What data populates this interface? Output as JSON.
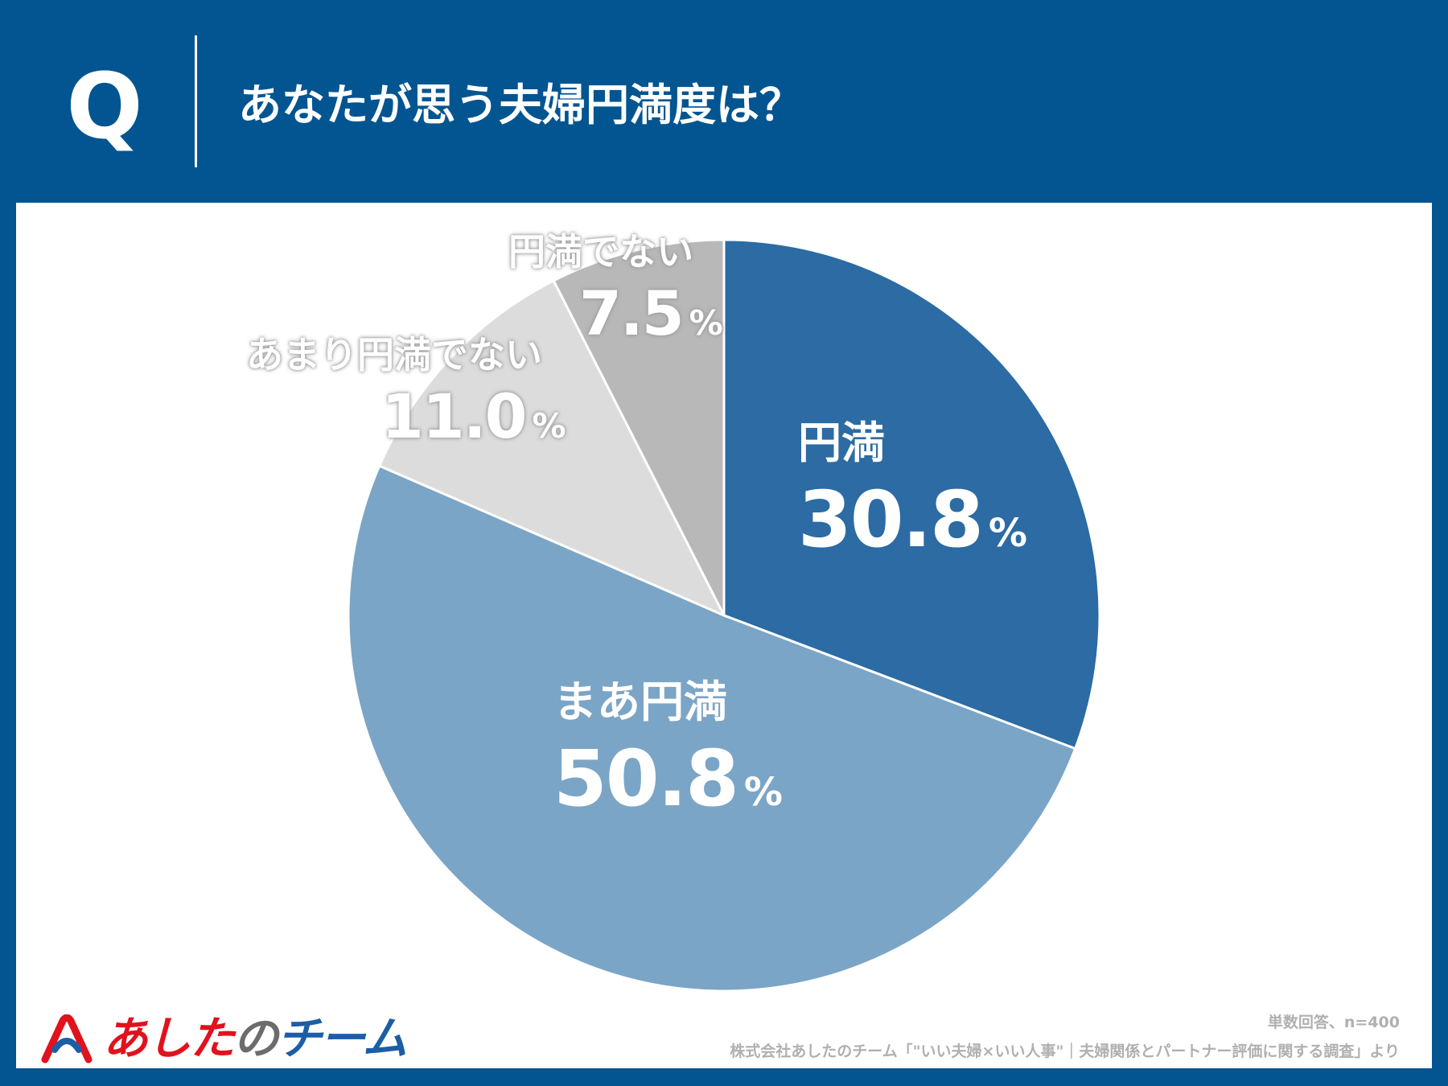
{
  "header": {
    "q_letter": "Q",
    "question": "あなたが思う夫婦円満度は？"
  },
  "chart_data": {
    "type": "pie",
    "title": "あなたが思う夫婦円満度は？",
    "unit": "%",
    "slices": [
      {
        "name": "円満",
        "value": 30.8,
        "value_text": "30.8",
        "color": "#2C6BA3"
      },
      {
        "name": "まあ円満",
        "value": 50.8,
        "value_text": "50.8",
        "color": "#7BA5C6"
      },
      {
        "name": "あまり円満でない",
        "value": 11.0,
        "value_text": "11.0",
        "color": "#DCDCDC"
      },
      {
        "name": "円満でない",
        "value": 7.5,
        "value_text": "7.5",
        "color": "#B8B8B8"
      }
    ],
    "start_angle": "12 o'clock",
    "direction": "clockwise"
  },
  "notes": {
    "basis": "単数回答、n=400",
    "source": "株式会社あしたのチーム「\"いい夫婦×いい人事\"｜夫婦関係とパートナー評価に関する調査」より"
  },
  "logo": {
    "part1": "あした",
    "part2": "の",
    "part3": "チーム"
  },
  "colors": {
    "background": "#035591",
    "panel": "#ffffff",
    "logo_red": "#e0121d",
    "logo_blue": "#1c5ea6"
  }
}
